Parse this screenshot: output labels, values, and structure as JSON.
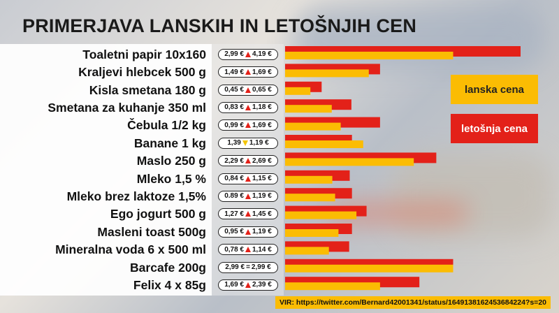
{
  "title": "PRIMERJAVA LANSKIH IN LETOŠNJIH CEN",
  "legend": {
    "last_year": "lanska cena",
    "this_year": "letošnja cena"
  },
  "colors": {
    "last_year": "#fbbc03",
    "this_year": "#e32119"
  },
  "source": "VIR: https://twitter.com/Bernard42001341/status/1649138162453684224?s=20",
  "chart_data": {
    "type": "bar",
    "orientation": "horizontal",
    "title": "PRIMERJAVA LANSKIH IN LETOŠNJIH CEN",
    "categories": [
      "Toaletni papir 10x160",
      "Kraljevi hlebcek 500 g",
      "Kisla smetana 180 g",
      "Smetana za kuhanje 350 ml",
      "Čebula 1/2 kg",
      "Banane 1 kg",
      "Maslo 250 g",
      "Mleko 1,5 %",
      "Mleko brez laktoze 1,5%",
      "Ego jogurt 500 g",
      "Masleni toast 500g",
      "Mineralna voda 6 x 500 ml",
      "Barcafe 200g",
      "Felix 4 x 85g"
    ],
    "series": [
      {
        "name": "lanska cena",
        "values": [
          2.99,
          1.49,
          0.45,
          0.83,
          0.99,
          1.39,
          2.29,
          0.84,
          0.89,
          1.27,
          0.95,
          0.78,
          2.99,
          1.69
        ]
      },
      {
        "name": "letošnja cena",
        "values": [
          4.19,
          1.69,
          0.65,
          1.18,
          1.69,
          1.19,
          2.69,
          1.15,
          1.19,
          1.45,
          1.19,
          1.14,
          2.99,
          2.39
        ]
      }
    ],
    "value_labels_old": [
      "2,99 €",
      "1,49 €",
      "0,45 €",
      "0,83 €",
      "0,99 €",
      "1,39",
      "2,29 €",
      "0,84 €",
      "0.89 €",
      "1,27 €",
      "0,95 €",
      "0,78 €",
      "2,99 €",
      "1,69 €"
    ],
    "value_labels_new": [
      "4,19 €",
      "1,69 €",
      "0,65 €",
      "1,18 €",
      "1,69 €",
      "1,19 €",
      "2,69 €",
      "1,15 €",
      "1,19 €",
      "1,45 €",
      "1,19 €",
      "1,14 €",
      "2,99 €",
      "2,39 €"
    ],
    "change": [
      "up",
      "up",
      "up",
      "up",
      "up",
      "down",
      "up",
      "up",
      "up",
      "up",
      "up",
      "up",
      "equal",
      "up"
    ],
    "xlim": [
      0,
      4.19
    ],
    "grid": false,
    "legend_position": "right"
  }
}
